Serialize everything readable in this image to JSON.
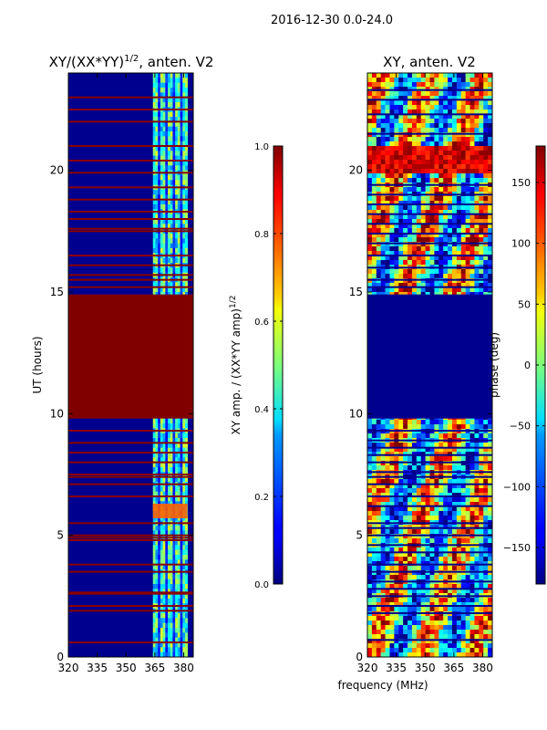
{
  "suptitle": "2016-12-30 0.0-24.0",
  "chart_data": [
    {
      "type": "heatmap",
      "title_main": "XY/(XX*YY)",
      "title_exp": "1/2",
      "title_rest": ", anten. V2",
      "xlabel": "",
      "ylabel": "UT (hours)",
      "xlim": [
        320,
        385
      ],
      "ylim": [
        0,
        24
      ],
      "xticks": [
        "320",
        "335",
        "350",
        "365",
        "380"
      ],
      "yticks": [
        "0",
        "5",
        "10",
        "15",
        "20"
      ],
      "colormap": "jet",
      "background_color": "#00008f",
      "active_band_mhz": [
        364,
        382
      ],
      "saturated_blocks_hours": [
        [
          9.8,
          14.9
        ]
      ],
      "hot_spot": {
        "x_mhz": [
          364,
          382
        ],
        "ut": [
          5.7,
          6.3
        ]
      },
      "flag_lines_hours": [
        0.6,
        1.9,
        2.1,
        2.6,
        2.65,
        3.5,
        3.8,
        4.8,
        4.9,
        5.0,
        5.5,
        6.6,
        7.1,
        7.4,
        7.5,
        8.0,
        8.4,
        8.8,
        9.3,
        15.2,
        15.5,
        15.7,
        16.1,
        16.5,
        17.5,
        17.6,
        18.0,
        18.3,
        18.8,
        19.3,
        19.9,
        20.4,
        21.0,
        22.0,
        22.5,
        23.0
      ]
    },
    {
      "type": "heatmap",
      "title": "XY, anten. V2",
      "xlabel": "frequency (MHz)",
      "ylabel": "",
      "xlim": [
        320,
        385
      ],
      "ylim": [
        0,
        24
      ],
      "xticks": [
        "320",
        "335",
        "350",
        "365",
        "380"
      ],
      "yticks": [
        "0",
        "5",
        "10",
        "15",
        "20"
      ],
      "colormap": "jet",
      "blank_blocks_hours": [
        [
          9.8,
          14.9
        ]
      ],
      "red_block_hours": [
        [
          19.9,
          21.0
        ]
      ],
      "flag_lines_hours": [
        0.7,
        1.8,
        2.1,
        2.5,
        2.8,
        3.1,
        3.5,
        3.8,
        4.3,
        4.6,
        5.0,
        5.3,
        5.5,
        6.2,
        6.6,
        7.1,
        7.4,
        7.6,
        8.0,
        8.3,
        8.6,
        8.9,
        9.3,
        15.2,
        15.5,
        16.0,
        16.5,
        17.0,
        17.4,
        17.8,
        18.2,
        18.6,
        19.0,
        19.4,
        21.5,
        22.3,
        22.9,
        23.3
      ]
    }
  ],
  "colorbar_amp": {
    "label_main": "XY amp. / (XX*YY amp)",
    "label_exp": "1/2",
    "range": [
      0.0,
      1.0
    ],
    "ticks": [
      "0.0",
      "0.2",
      "0.4",
      "0.6",
      "0.8",
      "1.0"
    ]
  },
  "colorbar_phase": {
    "label": "phase (deg)",
    "range": [
      -180,
      180
    ],
    "ticks": [
      "−150",
      "−100",
      "−50",
      "0",
      "50",
      "100",
      "150"
    ],
    "tick_values": [
      -150,
      -100,
      -50,
      0,
      50,
      100,
      150
    ]
  }
}
